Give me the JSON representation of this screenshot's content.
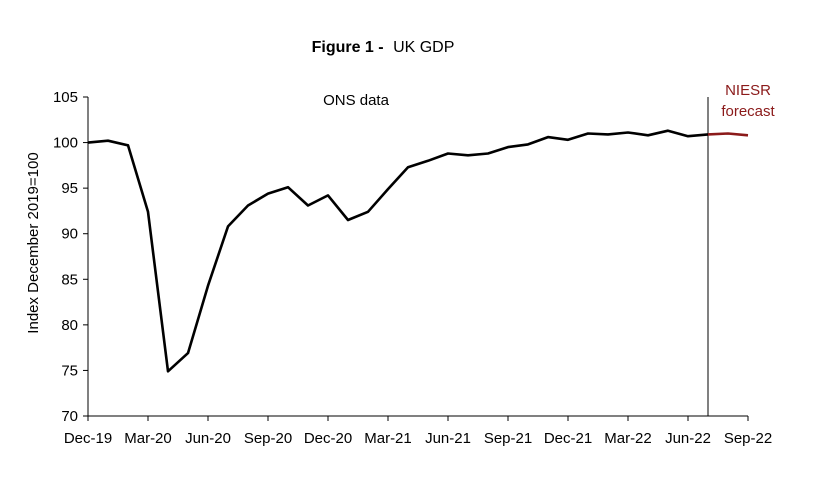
{
  "chart_data": {
    "type": "line",
    "title_bold": "Figure 1 -",
    "title_rest": "UK GDP",
    "ylabel": "Index December 2019=100",
    "ylim": [
      70,
      105
    ],
    "yticks": [
      "70",
      "75",
      "80",
      "85",
      "90",
      "95",
      "100",
      "105"
    ],
    "xticks": [
      "Dec-19",
      "Mar-20",
      "Jun-20",
      "Sep-20",
      "Dec-20",
      "Mar-21",
      "Jun-21",
      "Sep-21",
      "Dec-21",
      "Mar-22",
      "Jun-22",
      "Sep-22"
    ],
    "annotations": {
      "ons": "ONS data",
      "niesr_line1": "NIESR",
      "niesr_line2": "forecast"
    },
    "colors": {
      "ons": "#000000",
      "forecast": "#8b1a1a"
    },
    "series": [
      {
        "name": "ONS data",
        "start_index": 0,
        "values": [
          100.0,
          100.2,
          99.7,
          92.4,
          74.9,
          76.9,
          84.3,
          90.8,
          93.1,
          94.4,
          95.1,
          93.1,
          94.2,
          91.5,
          92.4,
          94.9,
          97.3,
          98.0,
          98.8,
          98.6,
          98.8,
          99.5,
          99.8,
          100.6,
          100.3,
          101.0,
          100.9,
          101.1,
          100.8,
          101.3,
          100.7,
          100.9
        ]
      },
      {
        "name": "NIESR forecast",
        "start_index": 31,
        "values": [
          100.9,
          101.0,
          100.8
        ]
      }
    ],
    "forecast_divider_index": 31
  }
}
